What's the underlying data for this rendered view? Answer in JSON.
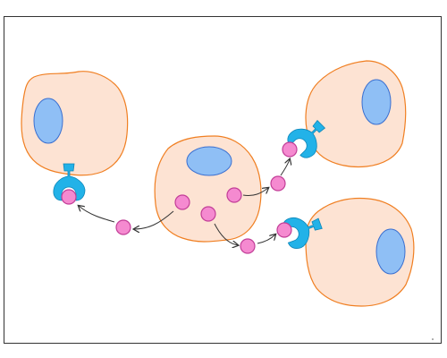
{
  "diagram": {
    "kind": "paracrine-signaling",
    "colors": {
      "cell_fill": "#fde3d3",
      "cell_outline": "#f07f22",
      "nucleus_fill": "#8fbff5",
      "nucleus_outline": "#3a6fd0",
      "ligand_fill": "#f58ad0",
      "ligand_outline": "#c23d97",
      "receptor_fill": "#22b2e8",
      "receptor_outline": "#0e86b8",
      "arrow": "#333333",
      "frame": "#333333"
    },
    "cells": [
      {
        "id": "signaling-cell",
        "role": "signaling",
        "ligands_inside": 3
      },
      {
        "id": "target-cell-left",
        "role": "target",
        "receptor": "bound"
      },
      {
        "id": "target-cell-top-right",
        "role": "target",
        "receptor": "bound"
      },
      {
        "id": "target-cell-bottom-right",
        "role": "target",
        "receptor": "bound"
      }
    ],
    "free_ligands": 3,
    "arrows": 3
  }
}
